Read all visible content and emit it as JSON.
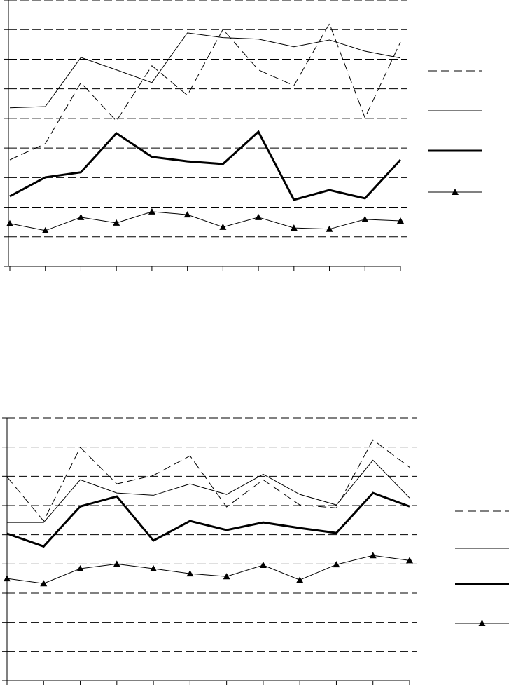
{
  "chart_data": [
    {
      "type": "line",
      "categories": [
        null,
        null,
        null,
        null,
        null,
        null,
        null,
        null,
        null,
        null,
        null,
        null
      ],
      "ylim": [
        0,
        9
      ],
      "yticks": [
        0,
        1,
        2,
        3,
        4,
        5,
        6,
        7,
        8,
        9
      ],
      "grid": true,
      "legend": "right",
      "series": [
        {
          "color": "#000000",
          "dash": "dashed",
          "weight": "thin",
          "marker": "none",
          "values": [
            3.6,
            4.15,
            6.21,
            4.91,
            6.78,
            5.78,
            8.01,
            6.64,
            6.11,
            8.2,
            5.02,
            7.58
          ]
        },
        {
          "color": "#000000",
          "dash": "solid",
          "weight": "thin",
          "marker": "none",
          "values": [
            5.36,
            5.4,
            7.06,
            6.64,
            6.21,
            7.89,
            7.73,
            7.68,
            7.42,
            7.65,
            7.27,
            7.04
          ]
        },
        {
          "color": "#000000",
          "dash": "solid",
          "weight": "bold",
          "marker": "none",
          "values": [
            2.37,
            3.01,
            3.18,
            4.5,
            3.7,
            3.55,
            3.46,
            4.55,
            2.25,
            2.58,
            2.3,
            3.6
          ]
        },
        {
          "color": "#000000",
          "dash": "solid",
          "weight": "thin",
          "marker": "triangle",
          "values": [
            1.45,
            1.21,
            1.66,
            1.47,
            1.85,
            1.75,
            1.33,
            1.66,
            1.3,
            1.26,
            1.59,
            1.54
          ]
        }
      ]
    },
    {
      "type": "line",
      "categories": [
        null,
        null,
        null,
        null,
        null,
        null,
        null,
        null,
        null,
        null,
        null,
        null
      ],
      "ylim": [
        0,
        9
      ],
      "yticks": [
        0,
        1,
        2,
        3,
        4,
        5,
        6,
        7,
        8,
        9
      ],
      "grid": true,
      "legend": "right",
      "series": [
        {
          "color": "#000000",
          "dash": "dashed",
          "weight": "thin",
          "marker": "none",
          "values": [
            6.98,
            5.47,
            7.99,
            6.74,
            7.03,
            7.7,
            5.95,
            6.88,
            6.02,
            5.92,
            8.25,
            7.31
          ]
        },
        {
          "color": "#000000",
          "dash": "solid",
          "weight": "thin",
          "marker": "none",
          "values": [
            5.42,
            5.42,
            6.88,
            6.43,
            6.35,
            6.74,
            6.38,
            7.07,
            6.38,
            6.02,
            7.55,
            6.26
          ]
        },
        {
          "color": "#000000",
          "dash": "solid",
          "weight": "bold",
          "marker": "none",
          "values": [
            5.04,
            4.6,
            5.97,
            6.31,
            4.8,
            5.47,
            5.16,
            5.42,
            5.23,
            5.06,
            6.43,
            5.97
          ]
        },
        {
          "color": "#000000",
          "dash": "solid",
          "weight": "thin",
          "marker": "triangle",
          "values": [
            3.5,
            3.33,
            3.84,
            4.0,
            3.84,
            3.67,
            3.57,
            3.96,
            3.45,
            3.98,
            4.29,
            4.12
          ]
        }
      ]
    }
  ]
}
